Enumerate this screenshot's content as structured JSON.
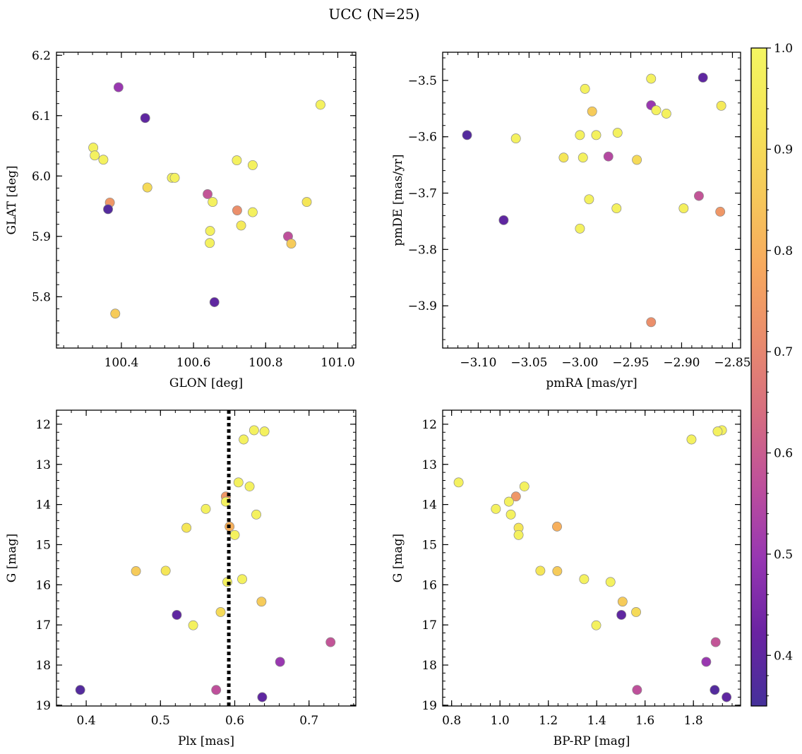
{
  "figure": {
    "title": "UCC (N=25)"
  },
  "chart_data": [
    {
      "type": "scatter",
      "xlabel": "GLON [deg]",
      "ylabel": "GLAT [deg]",
      "xlim": [
        100.22,
        101.05
      ],
      "ylim": [
        5.715,
        6.205
      ],
      "xticks": [
        100.4,
        100.6,
        100.8,
        101.0
      ],
      "xtick_labels": [
        "100.4",
        "100.6",
        "100.8",
        "101.0"
      ],
      "yticks": [
        5.8,
        5.9,
        6.0,
        6.1,
        6.2
      ],
      "ytick_labels": [
        "5.8",
        "5.9",
        "6.0",
        "6.1",
        "6.2"
      ],
      "points": [
        {
          "x": 100.392,
          "y": 6.147,
          "c": 0.5
        },
        {
          "x": 100.466,
          "y": 6.096,
          "c": 0.4
        },
        {
          "x": 100.952,
          "y": 6.118,
          "c": 0.98
        },
        {
          "x": 100.322,
          "y": 6.047,
          "c": 0.98
        },
        {
          "x": 100.326,
          "y": 6.034,
          "c": 0.98
        },
        {
          "x": 100.35,
          "y": 6.027,
          "c": 0.98
        },
        {
          "x": 100.72,
          "y": 6.026,
          "c": 0.98
        },
        {
          "x": 100.764,
          "y": 6.018,
          "c": 0.98
        },
        {
          "x": 100.54,
          "y": 5.997,
          "c": 0.98
        },
        {
          "x": 100.548,
          "y": 5.997,
          "c": 0.98
        },
        {
          "x": 100.472,
          "y": 5.981,
          "c": 0.9
        },
        {
          "x": 100.639,
          "y": 5.97,
          "c": 0.58
        },
        {
          "x": 100.653,
          "y": 5.957,
          "c": 0.98
        },
        {
          "x": 100.914,
          "y": 5.957,
          "c": 0.93
        },
        {
          "x": 100.368,
          "y": 5.956,
          "c": 0.74
        },
        {
          "x": 100.363,
          "y": 5.945,
          "c": 0.38
        },
        {
          "x": 100.721,
          "y": 5.943,
          "c": 0.72
        },
        {
          "x": 100.764,
          "y": 5.94,
          "c": 0.98
        },
        {
          "x": 100.732,
          "y": 5.918,
          "c": 0.95
        },
        {
          "x": 100.646,
          "y": 5.909,
          "c": 0.98
        },
        {
          "x": 100.862,
          "y": 5.9,
          "c": 0.57
        },
        {
          "x": 100.645,
          "y": 5.889,
          "c": 0.98
        },
        {
          "x": 100.871,
          "y": 5.888,
          "c": 0.86
        },
        {
          "x": 100.658,
          "y": 5.791,
          "c": 0.4
        },
        {
          "x": 100.383,
          "y": 5.772,
          "c": 0.86
        }
      ]
    },
    {
      "type": "scatter",
      "xlabel": "pmRA [mas/yr]",
      "ylabel": "pmDE [mas/yr]",
      "xlim": [
        -3.135,
        -2.842
      ],
      "ylim": [
        -3.975,
        -3.45
      ],
      "xticks": [
        -3.1,
        -3.05,
        -3.0,
        -2.95,
        -2.9,
        -2.85
      ],
      "xtick_labels": [
        "−3.10",
        "−3.05",
        "−3.00",
        "−2.95",
        "−2.90",
        "−2.85"
      ],
      "yticks": [
        -3.9,
        -3.8,
        -3.7,
        -3.6,
        -3.5
      ],
      "ytick_labels": [
        "−3.9",
        "−3.8",
        "−3.7",
        "−3.6",
        "−3.5"
      ],
      "points": [
        {
          "x": -2.93,
          "y": -3.497,
          "c": 0.98
        },
        {
          "x": -2.879,
          "y": -3.495,
          "c": 0.4
        },
        {
          "x": -2.995,
          "y": -3.515,
          "c": 0.98
        },
        {
          "x": -2.93,
          "y": -3.544,
          "c": 0.5
        },
        {
          "x": -2.861,
          "y": -3.545,
          "c": 0.95
        },
        {
          "x": -2.925,
          "y": -3.553,
          "c": 0.98
        },
        {
          "x": -2.988,
          "y": -3.555,
          "c": 0.86
        },
        {
          "x": -2.915,
          "y": -3.559,
          "c": 0.98
        },
        {
          "x": -2.963,
          "y": -3.593,
          "c": 0.98
        },
        {
          "x": -3.111,
          "y": -3.597,
          "c": 0.38
        },
        {
          "x": -3.0,
          "y": -3.597,
          "c": 0.98
        },
        {
          "x": -2.984,
          "y": -3.597,
          "c": 0.98
        },
        {
          "x": -3.063,
          "y": -3.603,
          "c": 0.98
        },
        {
          "x": -2.972,
          "y": -3.635,
          "c": 0.55
        },
        {
          "x": -3.016,
          "y": -3.637,
          "c": 0.93
        },
        {
          "x": -2.997,
          "y": -3.637,
          "c": 0.98
        },
        {
          "x": -2.944,
          "y": -3.641,
          "c": 0.9
        },
        {
          "x": -2.883,
          "y": -3.705,
          "c": 0.58
        },
        {
          "x": -2.991,
          "y": -3.711,
          "c": 0.98
        },
        {
          "x": -2.898,
          "y": -3.727,
          "c": 0.97
        },
        {
          "x": -2.964,
          "y": -3.727,
          "c": 0.98
        },
        {
          "x": -2.862,
          "y": -3.733,
          "c": 0.74
        },
        {
          "x": -3.075,
          "y": -3.748,
          "c": 0.4
        },
        {
          "x": -3.0,
          "y": -3.763,
          "c": 0.98
        },
        {
          "x": -2.93,
          "y": -3.929,
          "c": 0.72
        }
      ]
    },
    {
      "type": "scatter",
      "xlabel": "Plx [mas]",
      "ylabel": "G [mag]",
      "xlim": [
        0.36,
        0.763
      ],
      "ylim": [
        19.02,
        11.65
      ],
      "y_inverted": true,
      "xticks": [
        0.4,
        0.5,
        0.6,
        0.7
      ],
      "xtick_labels": [
        "0.4",
        "0.5",
        "0.6",
        "0.7"
      ],
      "yticks": [
        12,
        13,
        14,
        15,
        16,
        17,
        18,
        19
      ],
      "ytick_labels": [
        "12",
        "13",
        "14",
        "15",
        "16",
        "17",
        "18",
        "19"
      ],
      "vline": {
        "x": 0.592,
        "style": "dotted"
      },
      "points": [
        {
          "x": 0.626,
          "y": 12.15,
          "c": 0.98
        },
        {
          "x": 0.64,
          "y": 12.18,
          "c": 0.98
        },
        {
          "x": 0.612,
          "y": 12.38,
          "c": 0.98
        },
        {
          "x": 0.605,
          "y": 13.45,
          "c": 0.98
        },
        {
          "x": 0.62,
          "y": 13.55,
          "c": 0.98
        },
        {
          "x": 0.588,
          "y": 13.8,
          "c": 0.74
        },
        {
          "x": 0.588,
          "y": 13.93,
          "c": 0.98
        },
        {
          "x": 0.561,
          "y": 14.11,
          "c": 0.98
        },
        {
          "x": 0.629,
          "y": 14.25,
          "c": 0.98
        },
        {
          "x": 0.593,
          "y": 14.55,
          "c": 0.8
        },
        {
          "x": 0.535,
          "y": 14.58,
          "c": 0.93
        },
        {
          "x": 0.6,
          "y": 14.76,
          "c": 0.98
        },
        {
          "x": 0.467,
          "y": 15.66,
          "c": 0.86
        },
        {
          "x": 0.507,
          "y": 15.65,
          "c": 0.93
        },
        {
          "x": 0.61,
          "y": 15.86,
          "c": 0.98
        },
        {
          "x": 0.59,
          "y": 15.93,
          "c": 0.98
        },
        {
          "x": 0.636,
          "y": 16.42,
          "c": 0.86
        },
        {
          "x": 0.581,
          "y": 16.68,
          "c": 0.9
        },
        {
          "x": 0.522,
          "y": 16.75,
          "c": 0.4
        },
        {
          "x": 0.544,
          "y": 17.01,
          "c": 0.98
        },
        {
          "x": 0.729,
          "y": 17.43,
          "c": 0.58
        },
        {
          "x": 0.661,
          "y": 17.92,
          "c": 0.5
        },
        {
          "x": 0.392,
          "y": 18.62,
          "c": 0.38
        },
        {
          "x": 0.575,
          "y": 18.62,
          "c": 0.57
        },
        {
          "x": 0.637,
          "y": 18.8,
          "c": 0.4
        }
      ]
    },
    {
      "type": "scatter",
      "xlabel": "BP-RP [mag]",
      "ylabel": "G [mag]",
      "xlim": [
        0.763,
        1.995
      ],
      "ylim": [
        19.02,
        11.65
      ],
      "y_inverted": true,
      "xticks": [
        0.8,
        1.0,
        1.2,
        1.4,
        1.6,
        1.8
      ],
      "xtick_labels": [
        "0.8",
        "1.0",
        "1.2",
        "1.4",
        "1.6",
        "1.8"
      ],
      "yticks": [
        12,
        13,
        14,
        15,
        16,
        17,
        18,
        19
      ],
      "ytick_labels": [
        "12",
        "13",
        "14",
        "15",
        "16",
        "17",
        "18",
        "19"
      ],
      "points": [
        {
          "x": 1.918,
          "y": 12.15,
          "c": 0.98
        },
        {
          "x": 1.9,
          "y": 12.18,
          "c": 0.98
        },
        {
          "x": 1.792,
          "y": 12.38,
          "c": 0.98
        },
        {
          "x": 0.829,
          "y": 13.45,
          "c": 0.98
        },
        {
          "x": 1.101,
          "y": 13.55,
          "c": 0.98
        },
        {
          "x": 1.066,
          "y": 13.8,
          "c": 0.74
        },
        {
          "x": 1.037,
          "y": 13.93,
          "c": 0.98
        },
        {
          "x": 0.983,
          "y": 14.11,
          "c": 0.98
        },
        {
          "x": 1.045,
          "y": 14.25,
          "c": 0.98
        },
        {
          "x": 1.236,
          "y": 14.55,
          "c": 0.8
        },
        {
          "x": 1.077,
          "y": 14.58,
          "c": 0.93
        },
        {
          "x": 1.077,
          "y": 14.76,
          "c": 0.98
        },
        {
          "x": 1.167,
          "y": 15.65,
          "c": 0.93
        },
        {
          "x": 1.237,
          "y": 15.66,
          "c": 0.86
        },
        {
          "x": 1.348,
          "y": 15.86,
          "c": 0.98
        },
        {
          "x": 1.457,
          "y": 15.93,
          "c": 0.98
        },
        {
          "x": 1.507,
          "y": 16.42,
          "c": 0.86
        },
        {
          "x": 1.563,
          "y": 16.68,
          "c": 0.9
        },
        {
          "x": 1.502,
          "y": 16.75,
          "c": 0.4
        },
        {
          "x": 1.398,
          "y": 17.01,
          "c": 0.98
        },
        {
          "x": 1.892,
          "y": 17.43,
          "c": 0.58
        },
        {
          "x": 1.853,
          "y": 17.92,
          "c": 0.5
        },
        {
          "x": 1.567,
          "y": 18.62,
          "c": 0.57
        },
        {
          "x": 1.888,
          "y": 18.62,
          "c": 0.38
        },
        {
          "x": 1.937,
          "y": 18.8,
          "c": 0.4
        }
      ]
    }
  ],
  "colorbar": {
    "range": [
      0.35,
      1.0
    ],
    "ticks": [
      0.4,
      0.5,
      0.6,
      0.7,
      0.8,
      0.9,
      1.0
    ],
    "tick_labels": [
      "0.4",
      "0.5",
      "0.6",
      "0.7",
      "0.8",
      "0.9",
      "1.0"
    ],
    "colormap_name": "plasma",
    "colormap_stops": [
      "#45309a",
      "#6a23a2",
      "#9636b2",
      "#bd4f9c",
      "#d66d80",
      "#e98b6d",
      "#f7a95e",
      "#f6c95a",
      "#f5e557",
      "#f4f662"
    ]
  }
}
